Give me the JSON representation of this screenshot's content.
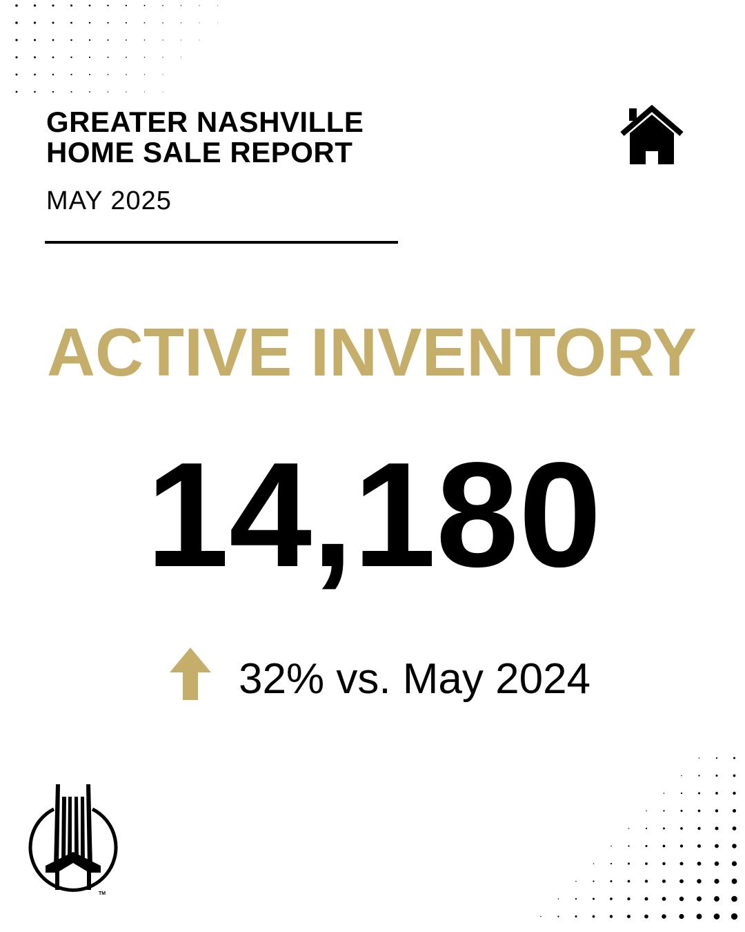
{
  "header": {
    "title_line1": "GREATER NASHVILLE",
    "title_line2": "HOME SALE REPORT",
    "period": "MAY 2025",
    "icon": "house-icon"
  },
  "metric": {
    "label": "ACTIVE INVENTORY",
    "value": "14,180",
    "change_text": "32% vs. May 2024",
    "change_direction": "up",
    "change_icon": "arrow-up-icon"
  },
  "logo": {
    "mark": "TM"
  },
  "colors": {
    "accent": "#C4AE6A",
    "text": "#000000",
    "background": "#FFFFFF"
  }
}
